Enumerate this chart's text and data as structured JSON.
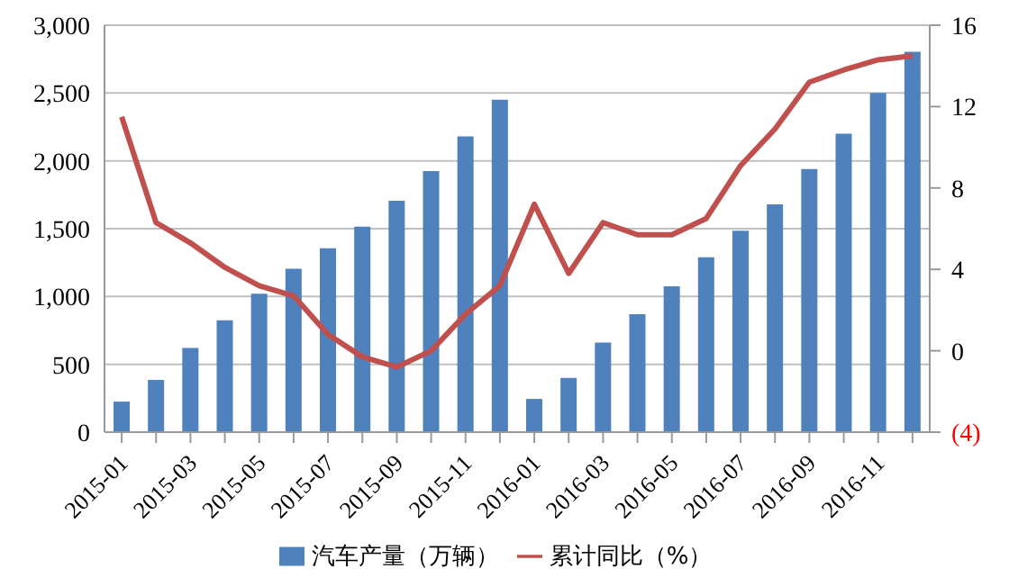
{
  "chart_data": {
    "type": "bar",
    "categories": [
      "2015-01",
      null,
      "2015-03",
      null,
      "2015-05",
      null,
      "2015-07",
      null,
      "2015-09",
      null,
      "2015-11",
      null,
      "2016-01",
      null,
      "2016-03",
      null,
      "2016-05",
      null,
      "2016-07",
      null,
      "2016-09",
      null,
      "2016-11",
      null
    ],
    "series": [
      {
        "name": "汽车产量（万辆）",
        "color": "#4f81bd",
        "values": [
          225,
          385,
          620,
          825,
          1020,
          1205,
          1355,
          1515,
          1705,
          1925,
          2180,
          2450,
          245,
          400,
          660,
          870,
          1075,
          1290,
          1485,
          1680,
          1940,
          2200,
          2500,
          2805
        ]
      },
      {
        "name": "累计同比（%）",
        "type": "line",
        "axis": "y2",
        "color": "#c0504d",
        "values": [
          11.5,
          6.3,
          5.3,
          4.1,
          3.2,
          2.7,
          0.8,
          -0.3,
          -0.8,
          0.0,
          1.8,
          3.2,
          7.2,
          3.8,
          6.3,
          5.7,
          5.7,
          6.5,
          9.1,
          10.9,
          13.2,
          13.8,
          14.3,
          14.5
        ]
      }
    ],
    "ylim": [
      0,
      3000
    ],
    "yticks": [
      0,
      {
        "value": 500,
        "label": "500"
      },
      {
        "value": 1000,
        "label": "1,000"
      },
      {
        "value": 1500,
        "label": "1,500"
      },
      {
        "value": 2000,
        "label": "2,000"
      },
      {
        "value": 2500,
        "label": "2,500"
      },
      {
        "value": 3000,
        "label": "3,000"
      }
    ],
    "y2lim": [
      -4,
      16
    ],
    "y2ticks": [
      {
        "value": -4,
        "label": "(4)"
      },
      0,
      4,
      8,
      12,
      16
    ],
    "grid": "y",
    "legend": "bottom",
    "marker": "none",
    "line_style": "solid"
  }
}
